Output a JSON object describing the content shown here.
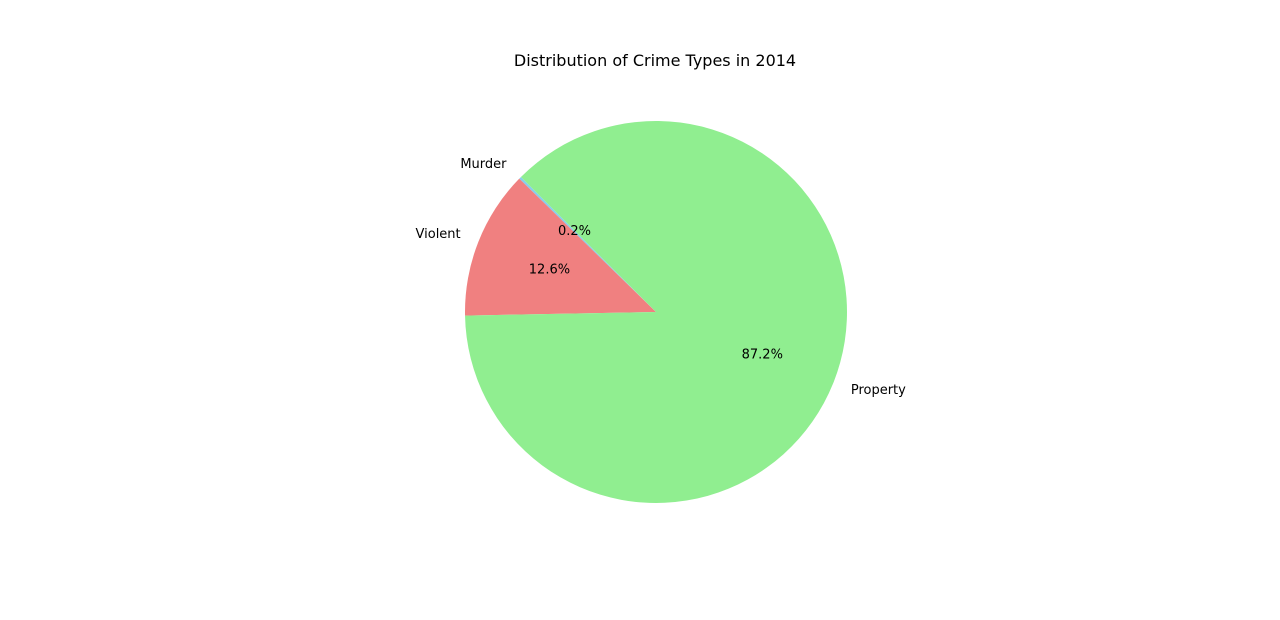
{
  "chart_data": {
    "type": "pie",
    "title": "Distribution of Crime Types in 2014",
    "slices": [
      {
        "label": "Murder",
        "value": 0.2,
        "pct_label": "0.2%",
        "color": "#87ceeb"
      },
      {
        "label": "Violent",
        "value": 12.6,
        "pct_label": "12.6%",
        "color": "#f08080"
      },
      {
        "label": "Property",
        "value": 87.2,
        "pct_label": "87.2%",
        "color": "#90ee90"
      }
    ],
    "start_angle_deg": 135,
    "direction": "counterclockwise"
  }
}
